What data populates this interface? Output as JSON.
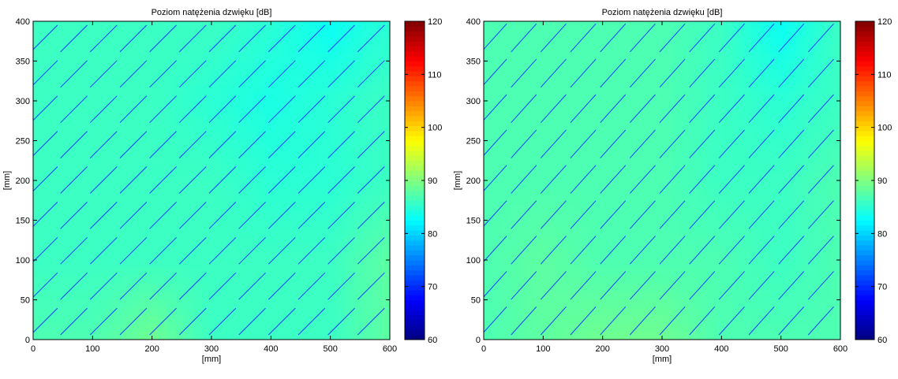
{
  "chart_data": [
    {
      "type": "heatmap",
      "title": "Poziom natężenia dzwięku [dB]",
      "xlabel": "[mm]",
      "ylabel": "[mm]",
      "xlim": [
        0,
        600
      ],
      "ylim": [
        0,
        400
      ],
      "xticks": [
        0,
        100,
        200,
        300,
        400,
        500,
        600
      ],
      "yticks": [
        0,
        50,
        100,
        150,
        200,
        250,
        300,
        350,
        400
      ],
      "colorbar": {
        "min": 60,
        "max": 120,
        "ticks": [
          60,
          70,
          80,
          90,
          100,
          110,
          120
        ]
      },
      "field": {
        "x": [
          0,
          100,
          200,
          300,
          400,
          500,
          600
        ],
        "y": [
          0,
          100,
          200,
          300,
          400
        ],
        "values_db": [
          [
            87,
            87,
            89,
            86,
            86,
            86,
            88
          ],
          [
            86,
            86,
            86,
            86,
            86,
            86,
            88
          ],
          [
            86,
            86,
            86,
            86,
            85,
            85,
            86
          ],
          [
            86,
            86,
            86,
            85,
            84,
            85,
            86
          ],
          [
            86,
            86,
            86,
            86,
            85,
            83,
            85
          ]
        ]
      },
      "vector_angle_deg": 45,
      "vector_color": "#1f3dff"
    },
    {
      "type": "heatmap",
      "title": "Poziom natężenia dzwięku [dB]",
      "xlabel": "[mm]",
      "ylabel": "[mm]",
      "xlim": [
        0,
        600
      ],
      "ylim": [
        0,
        400
      ],
      "xticks": [
        0,
        100,
        200,
        300,
        400,
        500,
        600
      ],
      "yticks": [
        0,
        50,
        100,
        150,
        200,
        250,
        300,
        350,
        400
      ],
      "colorbar": {
        "min": 60,
        "max": 120,
        "ticks": [
          60,
          70,
          80,
          90,
          100,
          110,
          120
        ]
      },
      "field": {
        "x": [
          0,
          100,
          200,
          300,
          400,
          500,
          600
        ],
        "y": [
          0,
          100,
          200,
          300,
          400
        ],
        "values_db": [
          [
            87,
            88,
            89,
            89,
            87,
            87,
            87
          ],
          [
            87,
            88,
            87,
            87,
            87,
            86,
            87
          ],
          [
            87,
            87,
            87,
            87,
            86,
            86,
            87
          ],
          [
            87,
            87,
            87,
            87,
            86,
            85,
            86
          ],
          [
            87,
            87,
            87,
            87,
            86,
            83,
            86
          ]
        ]
      },
      "vector_angle_deg": 48,
      "vector_color": "#1f3dff"
    }
  ]
}
